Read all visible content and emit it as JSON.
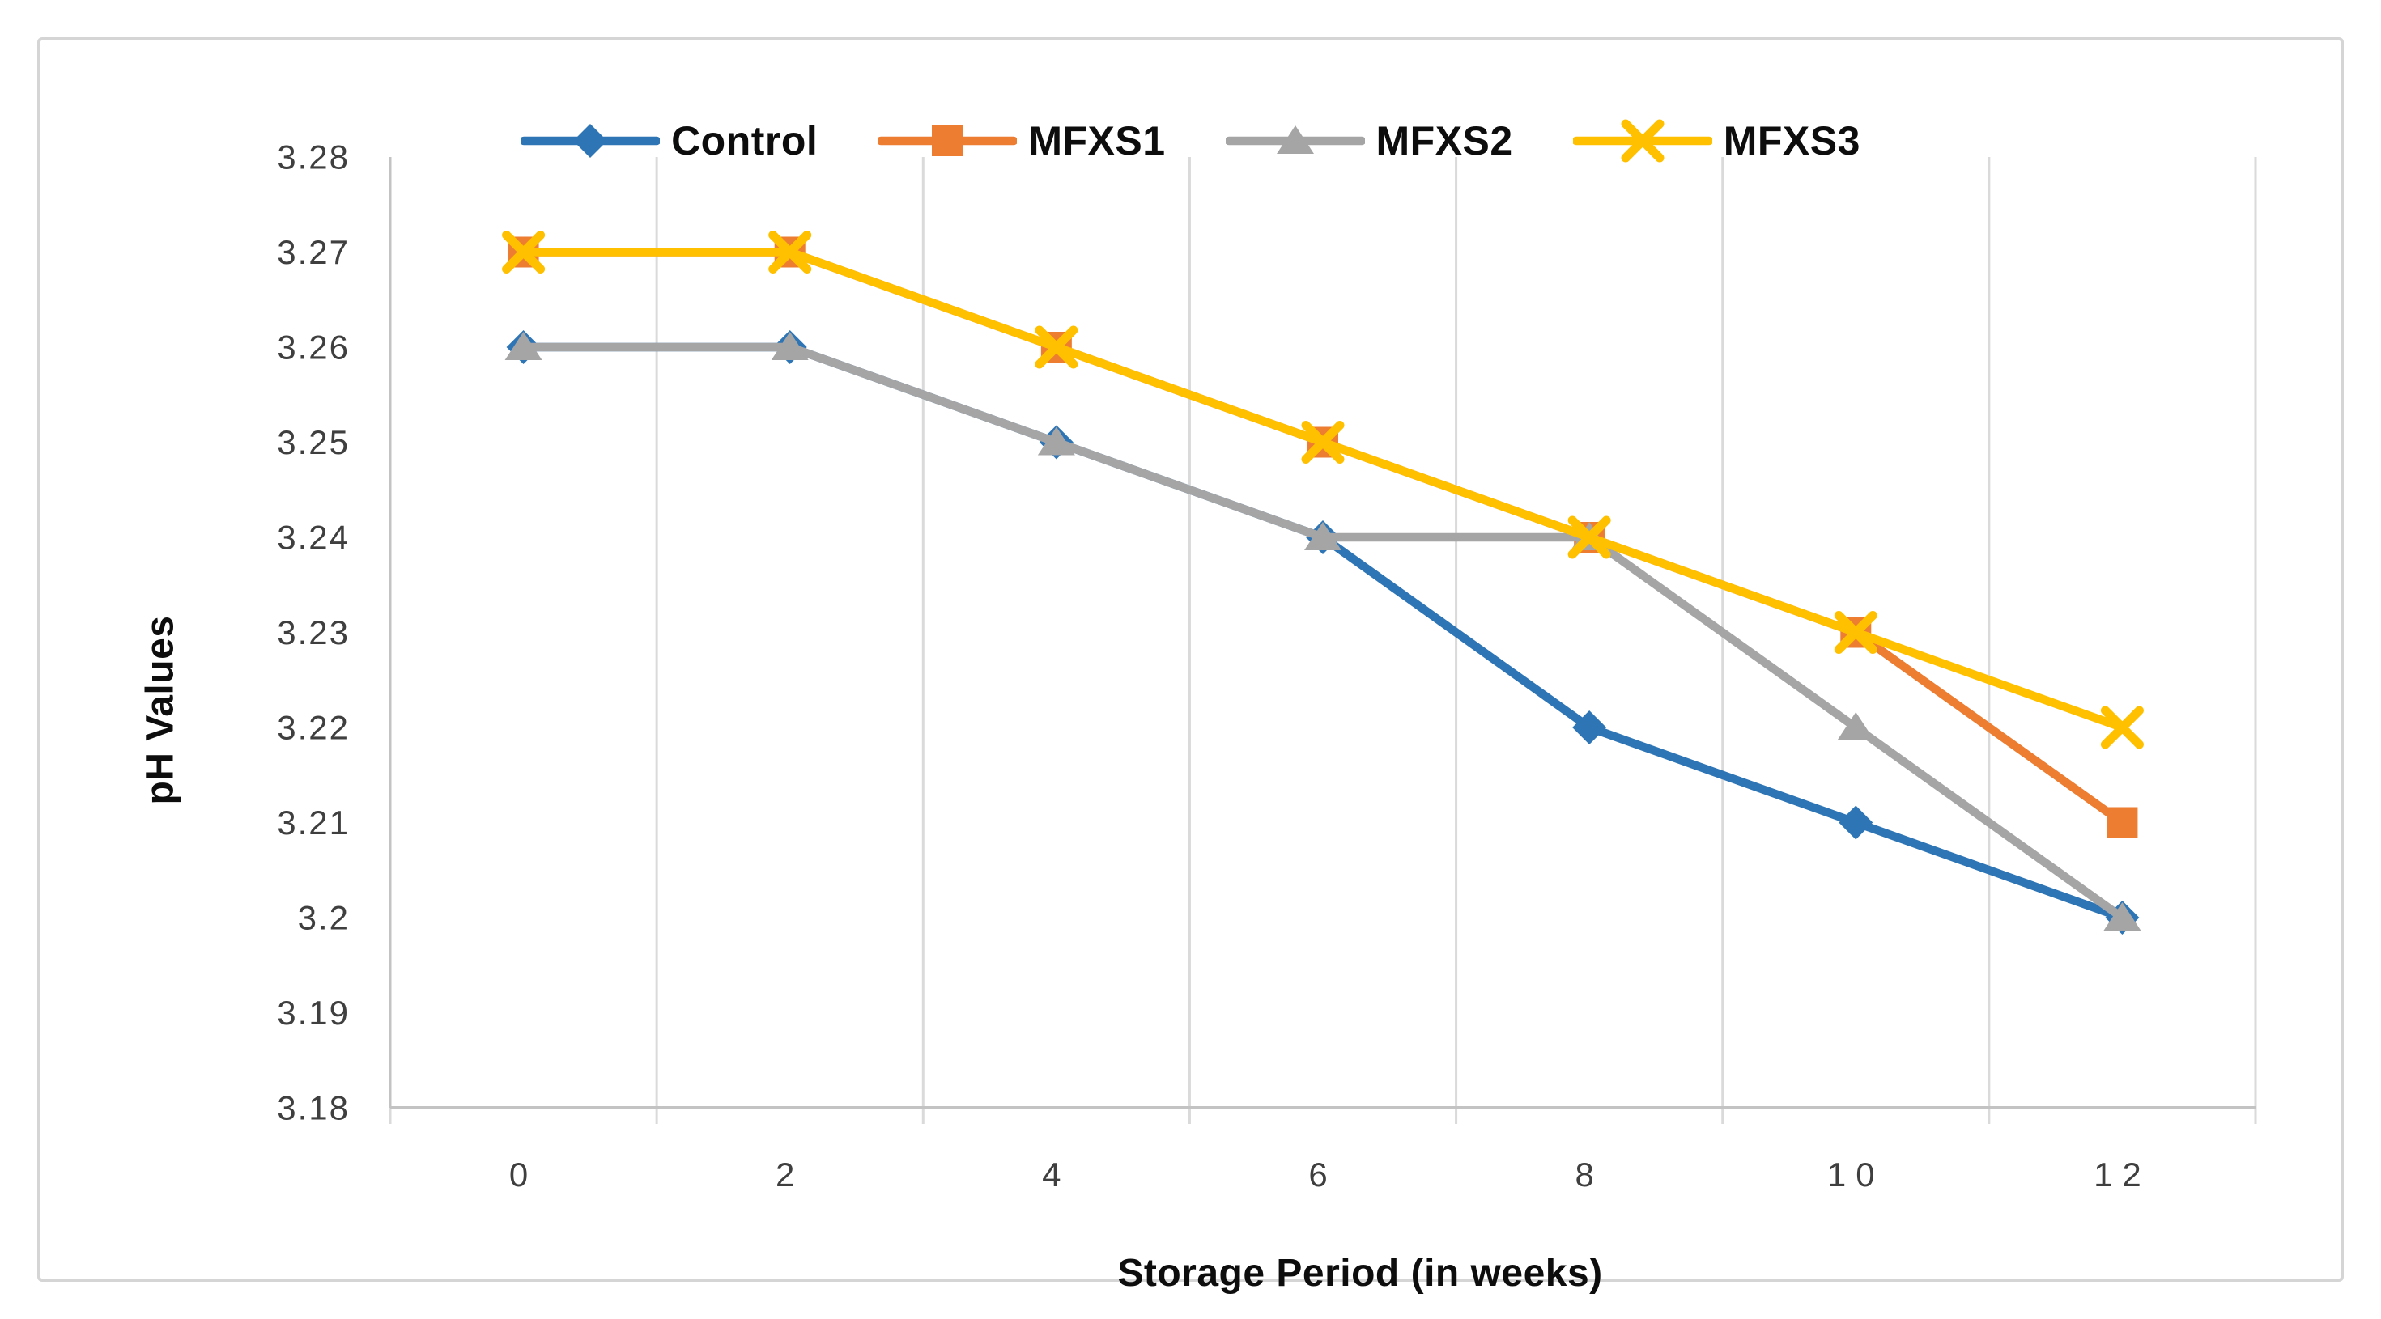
{
  "frame": {
    "border_color": "#d5d5d5",
    "background": "#ffffff"
  },
  "colors": {
    "gridline": "#dadada",
    "axis_line": "#c3c3c3",
    "tick_label": "#3f3f3f",
    "text": "#0d0d0d"
  },
  "chart_data": {
    "type": "line",
    "title": "",
    "xlabel": "Storage Period (in weeks)",
    "ylabel": "pH Values",
    "categories": [
      "0",
      "2",
      "4",
      "6",
      "8",
      "10",
      "12"
    ],
    "x_values": [
      0,
      2,
      4,
      6,
      8,
      10,
      12
    ],
    "ylim": [
      3.18,
      3.28
    ],
    "y_tick_step": 0.01,
    "y_tick_labels": [
      "3.18",
      "3.19",
      "3.2",
      "3.21",
      "3.22",
      "3.23",
      "3.24",
      "3.25",
      "3.26",
      "3.27",
      "3.28"
    ],
    "grid": "vertical-only",
    "legend_position": "top-center",
    "series": [
      {
        "name": "Control",
        "marker": "diamond",
        "color": "#2e75b6",
        "values": [
          3.26,
          3.26,
          3.25,
          3.24,
          3.22,
          3.21,
          3.2
        ]
      },
      {
        "name": "MFXS1",
        "marker": "square",
        "color": "#ed7d31",
        "values": [
          3.27,
          3.27,
          3.26,
          3.25,
          3.24,
          3.23,
          3.21
        ]
      },
      {
        "name": "MFXS2",
        "marker": "triangle",
        "color": "#a5a5a5",
        "values": [
          3.26,
          3.26,
          3.25,
          3.24,
          3.24,
          3.22,
          3.2
        ]
      },
      {
        "name": "MFXS3",
        "marker": "x",
        "color": "#ffc000",
        "values": [
          3.27,
          3.27,
          3.26,
          3.25,
          3.24,
          3.23,
          3.22
        ]
      }
    ]
  }
}
